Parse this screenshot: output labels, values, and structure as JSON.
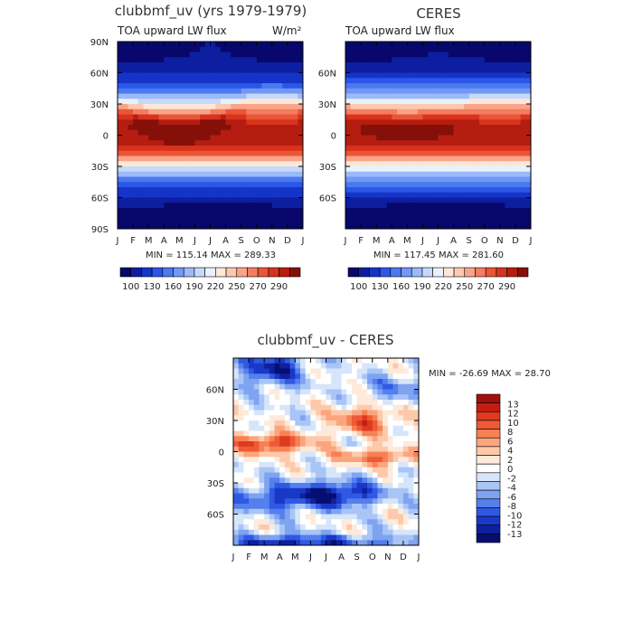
{
  "chart_data": [
    {
      "type": "heatmap",
      "title": "clubbmf_uv (yrs 1979-1979)",
      "subtitle_left": "TOA upward LW flux",
      "subtitle_right": "W/m²",
      "x_ticks": [
        "J",
        "F",
        "M",
        "A",
        "M",
        "J",
        "J",
        "A",
        "S",
        "O",
        "N",
        "D",
        "J"
      ],
      "y_ticks": [
        "90N",
        "60N",
        "30N",
        "0",
        "30S",
        "60S",
        "90S"
      ],
      "stats": "MIN = 115.14 MAX = 289.33",
      "colorbar": {
        "labels": [
          "100",
          "130",
          "160",
          "190",
          "220",
          "250",
          "270",
          "290"
        ],
        "colors": [
          "#08076b",
          "#0d1fa0",
          "#1535c8",
          "#2b57e8",
          "#4a79f0",
          "#7198f4",
          "#9cb9f8",
          "#c6d9fa",
          "#e9f1fc",
          "#fde7d8",
          "#fcc8b0",
          "#f9a488",
          "#f47c60",
          "#ea5535",
          "#d8331d",
          "#b51d10",
          "#851009"
        ]
      },
      "field": "model_lw",
      "value_range": [
        115.14,
        289.33
      ]
    },
    {
      "type": "heatmap",
      "title": "CERES",
      "subtitle_left": "TOA upward LW flux",
      "subtitle_right": "",
      "x_ticks": [
        "J",
        "F",
        "M",
        "A",
        "M",
        "J",
        "J",
        "A",
        "S",
        "O",
        "N",
        "D",
        "J"
      ],
      "y_ticks": [
        "",
        "60N",
        "30N",
        "0",
        "30S",
        "60S",
        ""
      ],
      "stats": "MIN = 117.45 MAX = 281.60",
      "colorbar": {
        "labels": [
          "100",
          "130",
          "160",
          "190",
          "220",
          "250",
          "270",
          "290"
        ],
        "colors": [
          "#08076b",
          "#0d1fa0",
          "#1535c8",
          "#2b57e8",
          "#4a79f0",
          "#7198f4",
          "#9cb9f8",
          "#c6d9fa",
          "#e9f1fc",
          "#fde7d8",
          "#fcc8b0",
          "#f9a488",
          "#f47c60",
          "#ea5535",
          "#d8331d",
          "#b51d10",
          "#851009"
        ]
      },
      "field": "obs_lw",
      "value_range": [
        117.45,
        281.6
      ]
    },
    {
      "type": "heatmap",
      "title": "clubbmf_uv - CERES",
      "subtitle_left": "",
      "subtitle_right": "",
      "x_ticks": [
        "J",
        "F",
        "M",
        "A",
        "M",
        "J",
        "J",
        "A",
        "S",
        "O",
        "N",
        "D",
        "J"
      ],
      "y_ticks": [
        "",
        "60N",
        "30N",
        "0",
        "30S",
        "60S",
        ""
      ],
      "stats": "MIN = -26.69 MAX =  28.70",
      "colorbar": {
        "labels": [
          "13",
          "12",
          "10",
          "8",
          "6",
          "4",
          "2",
          "0",
          "-2",
          "-4",
          "-6",
          "-8",
          "-10",
          "-12",
          "-13"
        ],
        "colors": [
          "#a30f0a",
          "#c41e13",
          "#dd3a1f",
          "#ee5a34",
          "#f78054",
          "#fba57e",
          "#fdc9aa",
          "#feeadb",
          "#ffffff",
          "#d6e5fa",
          "#a9c5f6",
          "#7ea3f1",
          "#557fec",
          "#2f59e3",
          "#1a38c6",
          "#0f209e",
          "#070e72"
        ]
      },
      "field": "diff_lw",
      "value_range": [
        -26.69,
        28.7
      ]
    }
  ]
}
